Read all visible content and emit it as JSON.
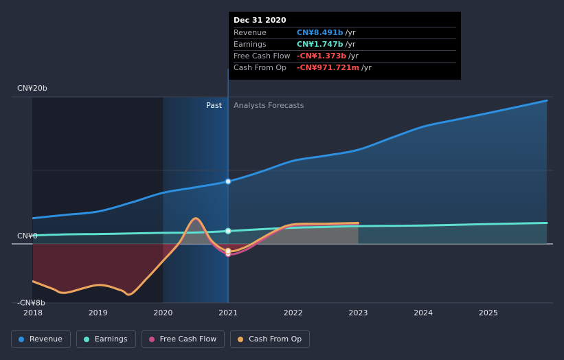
{
  "chart_data": {
    "type": "line",
    "title": "",
    "xlabel": "",
    "ylabel": "",
    "x_ticks": [
      "2018",
      "2019",
      "2020",
      "2021",
      "2022",
      "2023",
      "2024",
      "2025"
    ],
    "y_ticks": [
      {
        "value": 20,
        "label": "CN¥20b"
      },
      {
        "value": 0,
        "label": "CN¥0"
      },
      {
        "value": -8,
        "label": "-CN¥8b"
      }
    ],
    "ylim": [
      -8,
      20
    ],
    "xlim": [
      2018,
      2025.9
    ],
    "past_label": "Past",
    "forecast_label": "Analysts Forecasts",
    "divider_x": 2021,
    "highlight_start_x": 2020,
    "grid": true,
    "legend_position": "bottom-left",
    "series": [
      {
        "name": "Revenue",
        "color": "#2c8fe0",
        "points": [
          [
            2018,
            3.5
          ],
          [
            2018.5,
            3.95
          ],
          [
            2019,
            4.4
          ],
          [
            2019.5,
            5.6
          ],
          [
            2020,
            6.95
          ],
          [
            2020.5,
            7.7
          ],
          [
            2021,
            8.491
          ],
          [
            2021.5,
            9.8
          ],
          [
            2022,
            11.3
          ],
          [
            2022.5,
            12.0
          ],
          [
            2023,
            12.8
          ],
          [
            2023.5,
            14.4
          ],
          [
            2024,
            15.95
          ],
          [
            2024.5,
            16.9
          ],
          [
            2025,
            17.8
          ],
          [
            2025.9,
            19.5
          ]
        ]
      },
      {
        "name": "Earnings",
        "color": "#5ee0d0",
        "points": [
          [
            2018,
            1.15
          ],
          [
            2018.5,
            1.3
          ],
          [
            2019,
            1.35
          ],
          [
            2019.5,
            1.42
          ],
          [
            2020,
            1.5
          ],
          [
            2020.5,
            1.55
          ],
          [
            2021,
            1.747
          ],
          [
            2021.5,
            2.0
          ],
          [
            2022,
            2.2
          ],
          [
            2022.5,
            2.3
          ],
          [
            2023,
            2.42
          ],
          [
            2024,
            2.5
          ],
          [
            2025,
            2.7
          ],
          [
            2025.9,
            2.85
          ]
        ]
      },
      {
        "name": "Free Cash Flow",
        "color": "#c94e86",
        "points": [
          [
            2018,
            -5.1
          ],
          [
            2018.3,
            -6.1
          ],
          [
            2018.5,
            -6.65
          ],
          [
            2019,
            -5.6
          ],
          [
            2019.35,
            -6.3
          ],
          [
            2019.5,
            -6.85
          ],
          [
            2019.75,
            -4.7
          ],
          [
            2020,
            -2.3
          ],
          [
            2020.25,
            0.1
          ],
          [
            2020.5,
            3.4
          ],
          [
            2020.75,
            0.1
          ],
          [
            2021,
            -1.373
          ],
          [
            2021.25,
            -0.9
          ],
          [
            2021.5,
            0.4
          ],
          [
            2021.75,
            1.7
          ],
          [
            2022,
            2.5
          ],
          [
            2022.5,
            2.65
          ],
          [
            2023,
            2.75
          ]
        ]
      },
      {
        "name": "Cash From Op",
        "color": "#eaa65a",
        "points": [
          [
            2018,
            -5.1
          ],
          [
            2018.3,
            -6.1
          ],
          [
            2018.5,
            -6.65
          ],
          [
            2019,
            -5.6
          ],
          [
            2019.35,
            -6.3
          ],
          [
            2019.5,
            -6.85
          ],
          [
            2019.75,
            -4.7
          ],
          [
            2020,
            -2.3
          ],
          [
            2020.25,
            0.2
          ],
          [
            2020.5,
            3.5
          ],
          [
            2020.75,
            0.4
          ],
          [
            2021,
            -0.971721
          ],
          [
            2021.25,
            -0.5
          ],
          [
            2021.5,
            0.7
          ],
          [
            2021.75,
            1.9
          ],
          [
            2022,
            2.65
          ],
          [
            2022.5,
            2.75
          ],
          [
            2023,
            2.85
          ]
        ]
      }
    ]
  },
  "tooltip": {
    "title": "Dec 31 2020",
    "rows": [
      {
        "label": "Revenue",
        "value": "CN¥8.491b",
        "unit": "/yr",
        "color": "#2c8fe0"
      },
      {
        "label": "Earnings",
        "value": "CN¥1.747b",
        "unit": "/yr",
        "color": "#5ee0d0"
      },
      {
        "label": "Free Cash Flow",
        "value": "-CN¥1.373b",
        "unit": "/yr",
        "color": "#ff4c4c"
      },
      {
        "label": "Cash From Op",
        "value": "-CN¥971.721m",
        "unit": "/yr",
        "color": "#ff4c4c"
      }
    ]
  },
  "legend": [
    {
      "label": "Revenue",
      "color": "#2c8fe0"
    },
    {
      "label": "Earnings",
      "color": "#5ee0d0"
    },
    {
      "label": "Free Cash Flow",
      "color": "#c94e86"
    },
    {
      "label": "Cash From Op",
      "color": "#eaa65a"
    }
  ]
}
